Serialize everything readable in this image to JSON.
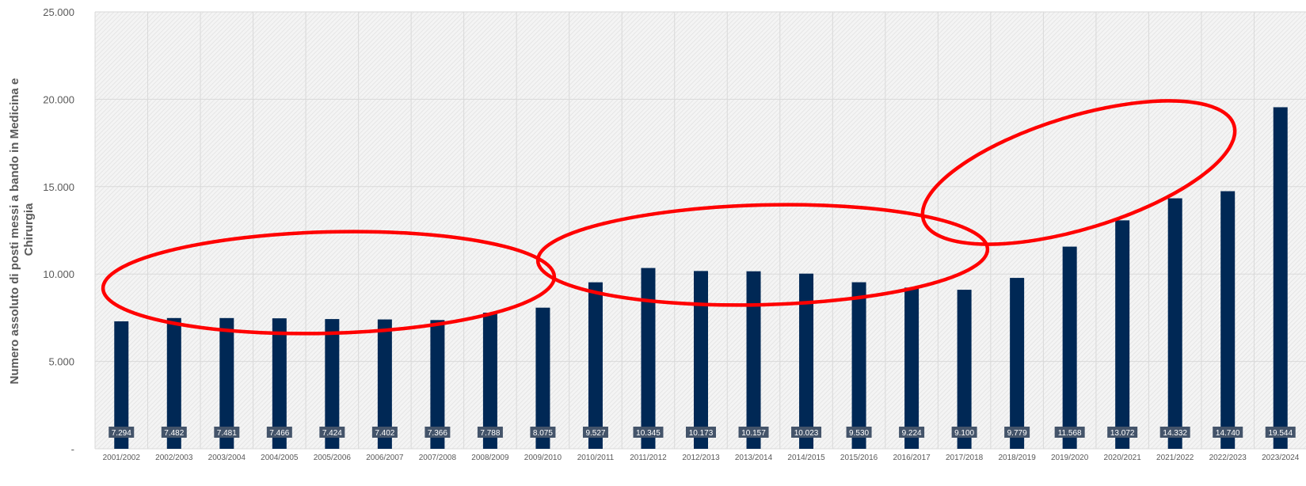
{
  "chart_data": {
    "type": "bar",
    "title": "",
    "xlabel": "",
    "ylabel": "Numero assoluto di posti messi a bando in Medicina e Chirurgia",
    "ylabel_lines": [
      "Numero assoluto di posti messi a bando in Medicina e",
      "Chirurgia"
    ],
    "categories": [
      "2001/2002",
      "2002/2003",
      "2003/2004",
      "2004/2005",
      "2005/2006",
      "2006/2007",
      "2007/2008",
      "2008/2009",
      "2009/2010",
      "2010/2011",
      "2011/2012",
      "2012/2013",
      "2013/2014",
      "2014/2015",
      "2015/2016",
      "2016/2017",
      "2017/2018",
      "2018/2019",
      "2019/2020",
      "2020/2021",
      "2021/2022",
      "2022/2023",
      "2023/2024"
    ],
    "values": [
      7294,
      7482,
      7481,
      7466,
      7424,
      7402,
      7366,
      7788,
      8075,
      9527,
      10345,
      10173,
      10157,
      10023,
      9530,
      9224,
      9100,
      9779,
      11568,
      13072,
      14332,
      14740,
      19544
    ],
    "data_labels": [
      "7.294",
      "7.482",
      "7.481",
      "7.466",
      "7.424",
      "7.402",
      "7.366",
      "7.788",
      "8.075",
      "9.527",
      "10.345",
      "10.173",
      "10.157",
      "10.023",
      "9.530",
      "9.224",
      "9.100",
      "9.779",
      "11.568",
      "13.072",
      "14.332",
      "14.740",
      "19.544"
    ],
    "ylim": [
      0,
      25000
    ],
    "yticks": [
      0,
      5000,
      10000,
      15000,
      20000,
      25000
    ],
    "ytick_labels": [
      "-",
      "5.000",
      "10.000",
      "15.000",
      "20.000",
      "25.000"
    ],
    "grid": true,
    "legend": "none",
    "colors": {
      "bar": "#002855",
      "data_label_bg": "#44546a",
      "data_label_text": "#ffffff",
      "grid": "#d9d9d9",
      "tick_text": "#595959",
      "annotation": "#ff0000"
    },
    "annotations": [
      {
        "type": "ellipse",
        "color": "#ff0000",
        "covers_categories": [
          "2001/2002",
          "2009/2010"
        ]
      },
      {
        "type": "ellipse",
        "color": "#ff0000",
        "covers_categories": [
          "2010/2011",
          "2018/2019"
        ]
      },
      {
        "type": "ellipse",
        "color": "#ff0000",
        "covers_categories": [
          "2018/2019",
          "2023/2024"
        ]
      }
    ]
  }
}
